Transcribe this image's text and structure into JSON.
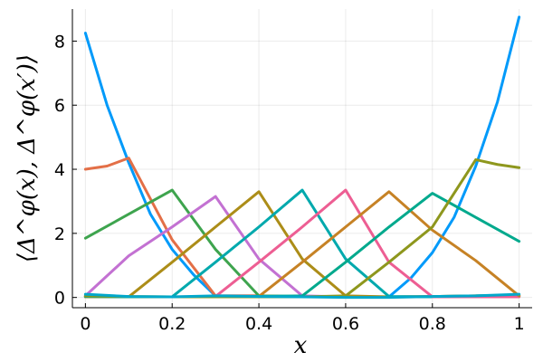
{
  "chart_data": {
    "type": "line",
    "xlabel": "x",
    "ylabel": "⟨Δ^φ(x), Δ^φ(x′)⟩",
    "xlim": [
      -0.03,
      1.03
    ],
    "ylim": [
      -0.32,
      9.0
    ],
    "xticks": [
      0,
      0.2,
      0.4,
      0.6,
      0.8,
      1
    ],
    "xtick_labels": [
      "0",
      "0.2",
      "0.4",
      "0.6",
      "0.8",
      "1"
    ],
    "yticks": [
      0,
      2,
      4,
      6,
      8
    ],
    "ytick_labels": [
      "0",
      "2",
      "4",
      "6",
      "8"
    ],
    "grid": true,
    "legend": "none",
    "series": [
      {
        "color": "#009AFA",
        "x": [
          0,
          0.05,
          0.1,
          0.15,
          0.2,
          0.25,
          0.3,
          0.4,
          0.5,
          0.6,
          0.7,
          0.75,
          0.8,
          0.85,
          0.9,
          0.95,
          1.0
        ],
        "y": [
          8.25,
          6.0,
          4.2,
          2.6,
          1.5,
          0.7,
          0.05,
          0.05,
          0.03,
          0.03,
          0.02,
          0.6,
          1.4,
          2.5,
          4.1,
          6.1,
          8.75
        ]
      },
      {
        "color": "#E36F47",
        "x": [
          0,
          0.05,
          0.1,
          0.2,
          0.3,
          0.4,
          0.5,
          0.6,
          0.7,
          0.8,
          0.9,
          1.0
        ],
        "y": [
          4.0,
          4.1,
          4.35,
          1.8,
          0.05,
          0.05,
          0.02,
          0.02,
          0.02,
          0.03,
          0.05,
          0.05
        ]
      },
      {
        "color": "#3EA44E",
        "x": [
          0,
          0.1,
          0.2,
          0.3,
          0.4,
          0.5,
          0.6,
          0.7,
          0.8,
          0.9,
          1.0
        ],
        "y": [
          1.85,
          2.6,
          3.35,
          1.5,
          0.05,
          0.03,
          0.02,
          0.02,
          0.03,
          0.05,
          0.08
        ]
      },
      {
        "color": "#C371D2",
        "x": [
          0,
          0.1,
          0.2,
          0.3,
          0.4,
          0.5,
          0.6,
          0.7,
          0.8,
          0.9,
          1.0
        ],
        "y": [
          0.05,
          1.3,
          2.2,
          3.15,
          1.2,
          0.05,
          0.02,
          0.02,
          0.02,
          0.03,
          0.05
        ]
      },
      {
        "color": "#AC8D18",
        "x": [
          0,
          0.1,
          0.2,
          0.3,
          0.4,
          0.5,
          0.6,
          0.7,
          0.8,
          0.9,
          1.0
        ],
        "y": [
          0.02,
          0.02,
          1.1,
          2.2,
          3.3,
          1.2,
          0.05,
          0.02,
          0.02,
          0.03,
          0.05
        ]
      },
      {
        "color": "#00A9AD",
        "x": [
          0,
          0.1,
          0.2,
          0.3,
          0.4,
          0.5,
          0.6,
          0.7,
          0.8,
          0.9,
          1.0
        ],
        "y": [
          0.03,
          0.02,
          0.02,
          1.1,
          2.2,
          3.35,
          1.2,
          0.03,
          0.02,
          0.02,
          0.03
        ]
      },
      {
        "color": "#ED5E93",
        "x": [
          0,
          0.1,
          0.2,
          0.3,
          0.4,
          0.5,
          0.6,
          0.7,
          0.8,
          0.9,
          1.0
        ],
        "y": [
          0.02,
          0.02,
          0.02,
          0.03,
          1.1,
          2.2,
          3.35,
          1.1,
          0.02,
          0.02,
          0.02
        ]
      },
      {
        "color": "#C68225",
        "x": [
          0,
          0.1,
          0.2,
          0.3,
          0.4,
          0.5,
          0.6,
          0.7,
          0.8,
          0.9,
          1.0
        ],
        "y": [
          0.02,
          0.02,
          0.02,
          0.02,
          0.03,
          1.1,
          2.2,
          3.3,
          2.1,
          1.15,
          0.05
        ]
      },
      {
        "color": "#00A98D",
        "x": [
          0,
          0.1,
          0.2,
          0.3,
          0.4,
          0.5,
          0.6,
          0.7,
          0.8,
          0.9,
          1.0
        ],
        "y": [
          0.03,
          0.02,
          0.02,
          0.02,
          0.03,
          0.05,
          1.1,
          2.2,
          3.25,
          2.5,
          1.75
        ]
      },
      {
        "color": "#8E971D",
        "x": [
          0,
          0.1,
          0.2,
          0.3,
          0.4,
          0.5,
          0.6,
          0.7,
          0.8,
          0.9,
          0.95,
          1.0
        ],
        "y": [
          0.05,
          0.03,
          0.02,
          0.02,
          0.02,
          0.02,
          0.05,
          1.1,
          2.2,
          4.3,
          4.15,
          4.05
        ]
      },
      {
        "color": "#00A8CB",
        "x": [
          0,
          0.1,
          0.2,
          0.3,
          0.4,
          0.5,
          0.6,
          0.7,
          0.8,
          0.9,
          1.0
        ],
        "y": [
          0.1,
          0.03,
          0.02,
          0.05,
          0.03,
          0.02,
          0.0,
          0.0,
          0.03,
          0.05,
          0.1
        ]
      }
    ]
  }
}
